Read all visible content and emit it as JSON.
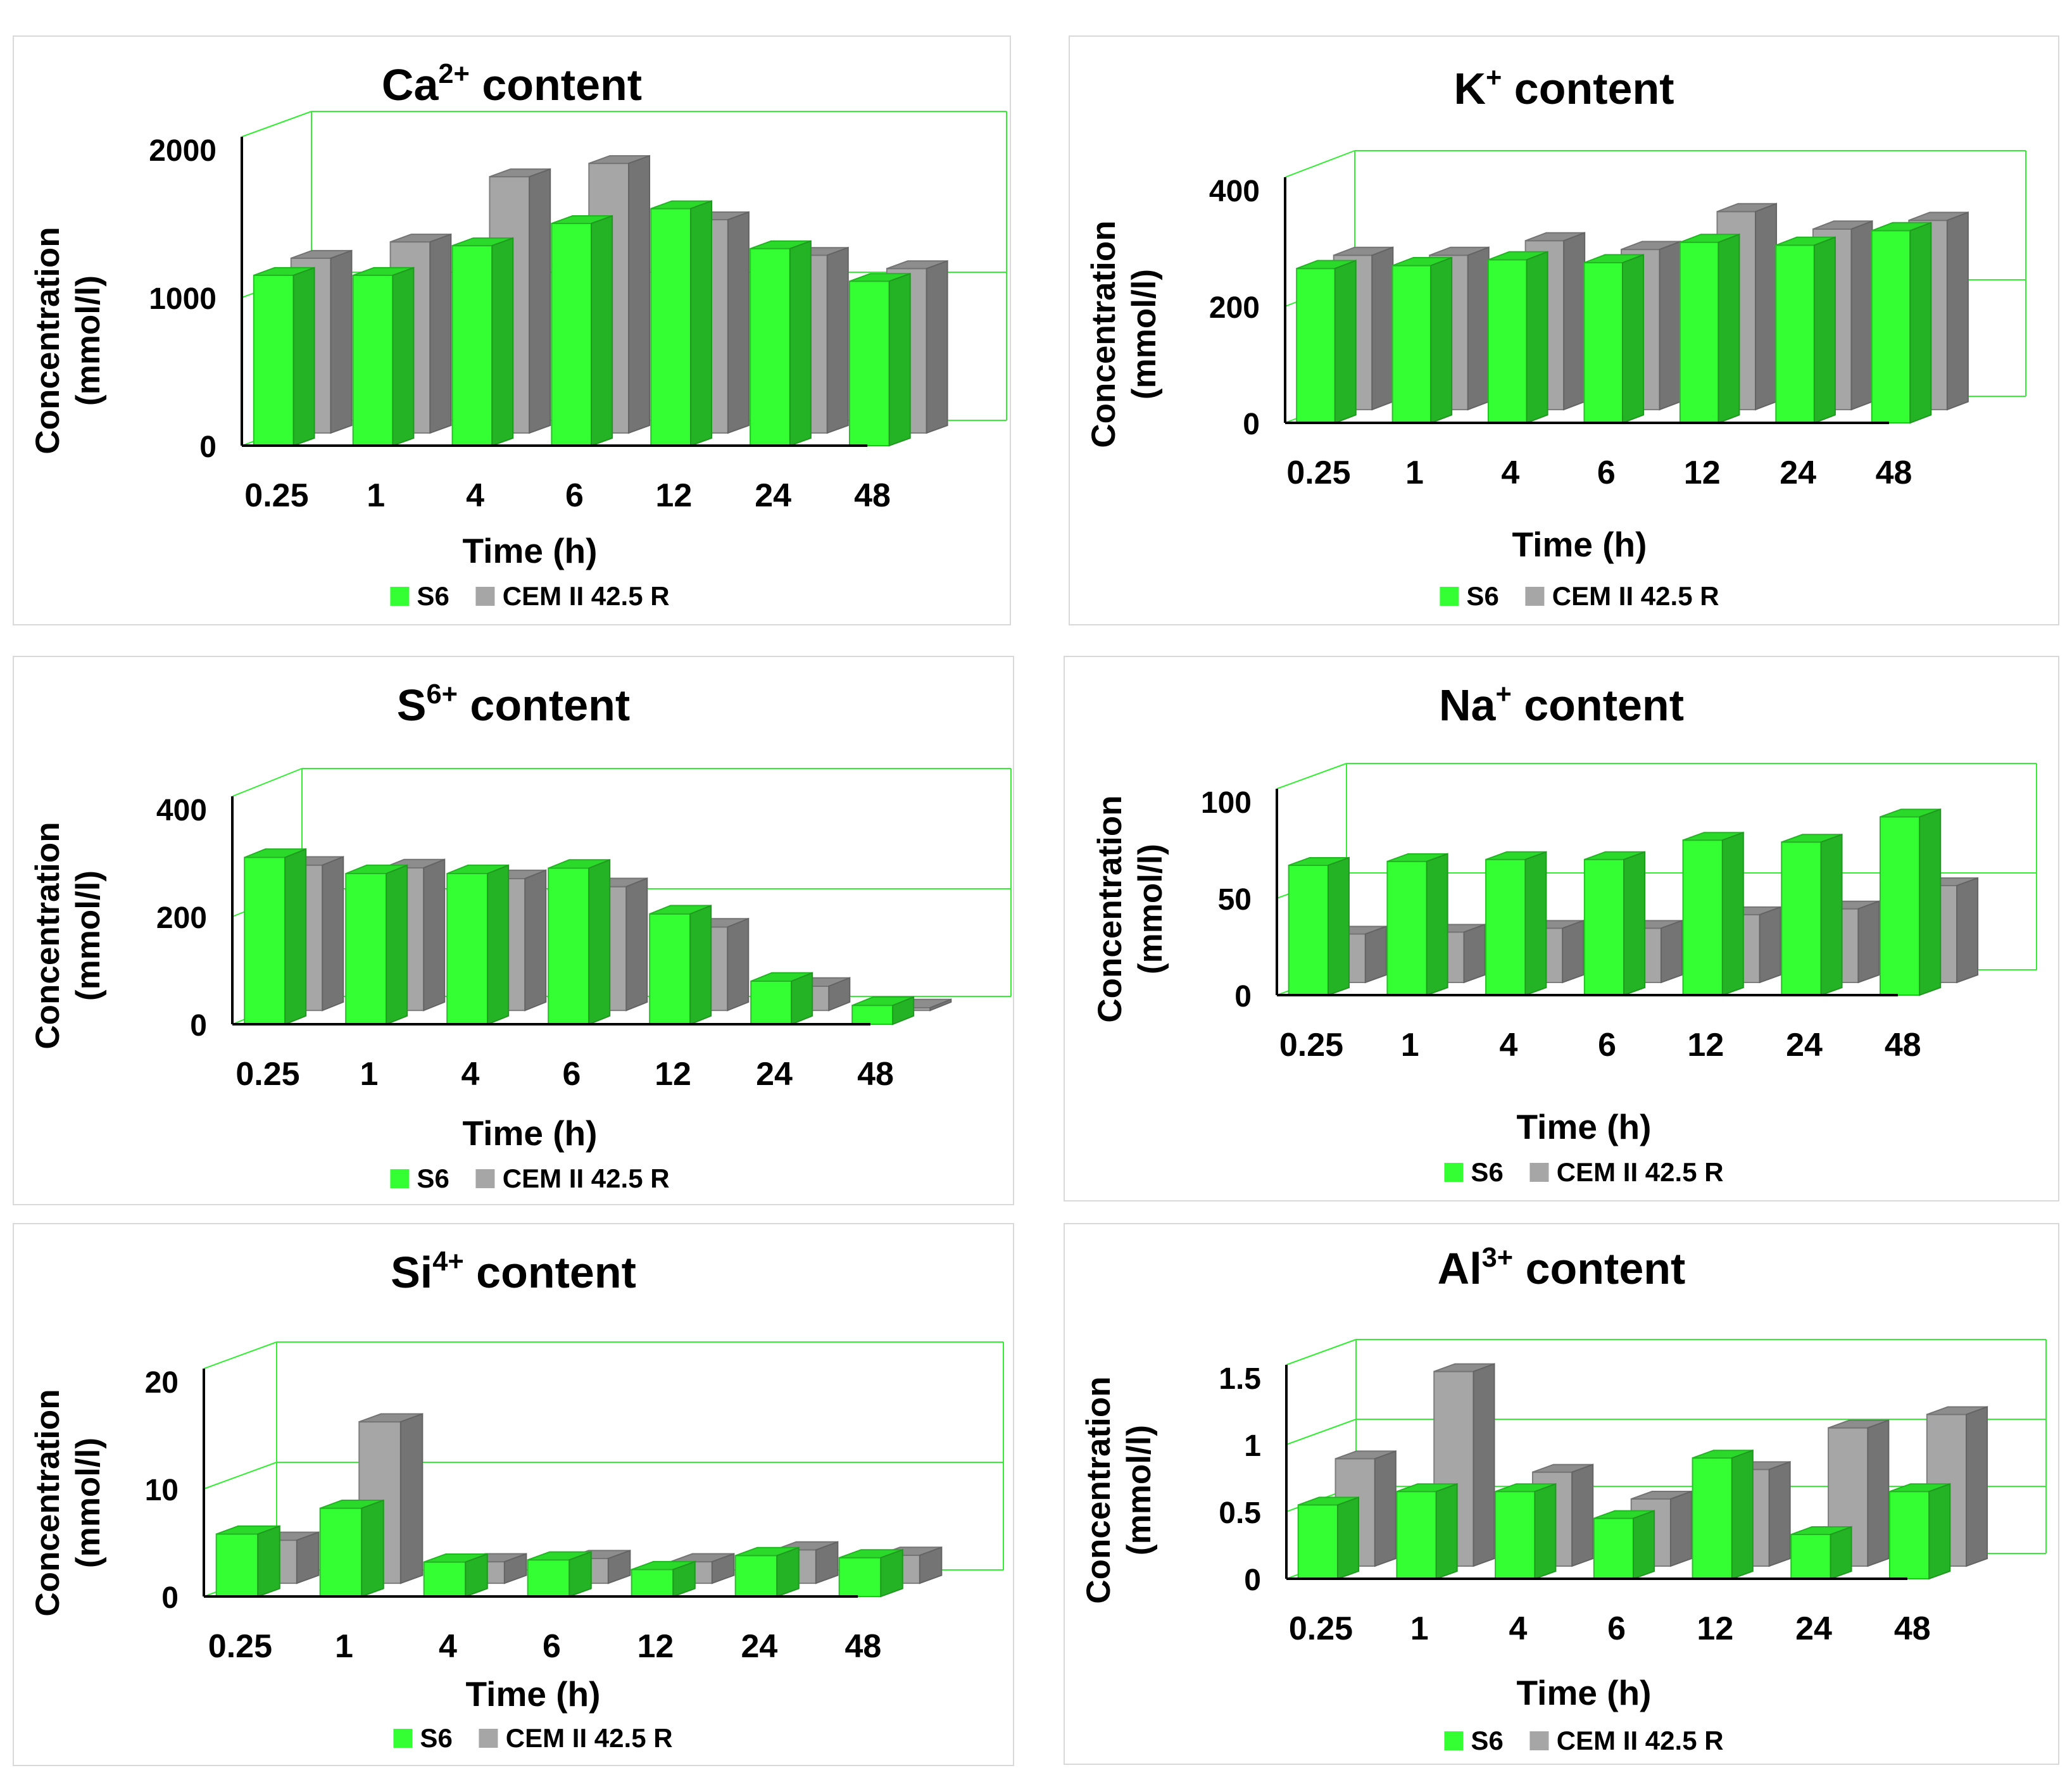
{
  "colors": {
    "s6": "#33ff33",
    "cem": "#a6a6a6",
    "wall": "#33ee33",
    "axis": "#000000"
  },
  "chart_data": [
    {
      "type": "bar",
      "title_base": "Ca",
      "title_sup": "2+",
      "title_rest": " content",
      "categories": [
        "0.25",
        "1",
        "4",
        "6",
        "12",
        "24",
        "48"
      ],
      "ylim": [
        0,
        2000
      ],
      "yticks": [
        "0",
        "1000",
        "2000"
      ],
      "xlabel": "Time (h)",
      "ylabel_line1": "Concentration",
      "ylabel_line2": "(mmol/l)",
      "series": [
        {
          "name": "S6",
          "values": [
            1150,
            1150,
            1350,
            1500,
            1600,
            1330,
            1110
          ]
        },
        {
          "name": "CEM II 42.5 R",
          "values": [
            1180,
            1290,
            1730,
            1820,
            1440,
            1200,
            1110
          ]
        }
      ]
    },
    {
      "type": "bar",
      "title_base": "K",
      "title_sup": "+",
      "title_rest": " content",
      "categories": [
        "0.25",
        "1",
        "4",
        "6",
        "12",
        "24",
        "48"
      ],
      "ylim": [
        0,
        400
      ],
      "yticks": [
        "0",
        "200",
        "400"
      ],
      "xlabel": "Time (h)",
      "ylabel_line1": "Concentration",
      "ylabel_line2": "(mmol/l)",
      "series": [
        {
          "name": "S6",
          "values": [
            265,
            270,
            280,
            275,
            310,
            305,
            330
          ]
        },
        {
          "name": "CEM II 42.5 R",
          "values": [
            265,
            265,
            290,
            275,
            340,
            310,
            325
          ]
        }
      ]
    },
    {
      "type": "bar",
      "title_base": "S",
      "title_sup": "6+",
      "title_rest": " content",
      "categories": [
        "0.25",
        "1",
        "4",
        "6",
        "12",
        "24",
        "48"
      ],
      "ylim": [
        0,
        400
      ],
      "yticks": [
        "0",
        "200",
        "400"
      ],
      "xlabel": "Time (h)",
      "ylabel_line1": "Concentration",
      "ylabel_line2": "(mmol/l)",
      "series": [
        {
          "name": "S6",
          "values": [
            310,
            280,
            280,
            290,
            205,
            80,
            35
          ]
        },
        {
          "name": "CEM II 42.5 R",
          "values": [
            270,
            265,
            245,
            230,
            155,
            45,
            5
          ]
        }
      ]
    },
    {
      "type": "bar",
      "title_base": "Na",
      "title_sup": "+",
      "title_rest": " content",
      "categories": [
        "0.25",
        "1",
        "4",
        "6",
        "12",
        "24",
        "48"
      ],
      "ylim": [
        0,
        100
      ],
      "yticks": [
        "0",
        "50",
        "100"
      ],
      "xlabel": "Time (h)",
      "ylabel_line1": "Concentration",
      "ylabel_line2": "(mmol/l)",
      "series": [
        {
          "name": "S6",
          "values": [
            67,
            69,
            70,
            70,
            80,
            79,
            92
          ]
        },
        {
          "name": "CEM II 42.5 R",
          "values": [
            25,
            26,
            28,
            28,
            35,
            38,
            50
          ]
        }
      ]
    },
    {
      "type": "bar",
      "title_base": "Si",
      "title_sup": "4+",
      "title_rest": " content",
      "categories": [
        "0.25",
        "1",
        "4",
        "6",
        "12",
        "24",
        "48"
      ],
      "ylim": [
        0,
        20
      ],
      "yticks": [
        "0",
        "10",
        "20"
      ],
      "xlabel": "Time (h)",
      "ylabel_line1": "Concentration",
      "ylabel_line2": "(mmol/l)",
      "series": [
        {
          "name": "S6",
          "values": [
            5.8,
            8.2,
            3.2,
            3.4,
            2.5,
            3.8,
            3.6
          ]
        },
        {
          "name": "CEM II 42.5 R",
          "values": [
            4.0,
            15.0,
            2.0,
            2.3,
            2.0,
            3.1,
            2.6
          ]
        }
      ]
    },
    {
      "type": "bar",
      "title_base": "Al",
      "title_sup": "3+",
      "title_rest": " content",
      "categories": [
        "0.25",
        "1",
        "4",
        "6",
        "12",
        "24",
        "48"
      ],
      "ylim": [
        0,
        1.5
      ],
      "yticks": [
        "0",
        "0.5",
        "1",
        "1.5"
      ],
      "xlabel": "Time (h)",
      "ylabel_line1": "Concentration",
      "ylabel_line2": "(mmol/l)",
      "series": [
        {
          "name": "S6",
          "values": [
            0.55,
            0.65,
            0.65,
            0.45,
            0.9,
            0.33,
            0.65
          ]
        },
        {
          "name": "CEM II 42.5 R",
          "values": [
            0.8,
            1.45,
            0.7,
            0.5,
            0.72,
            1.03,
            1.13
          ]
        }
      ]
    }
  ]
}
